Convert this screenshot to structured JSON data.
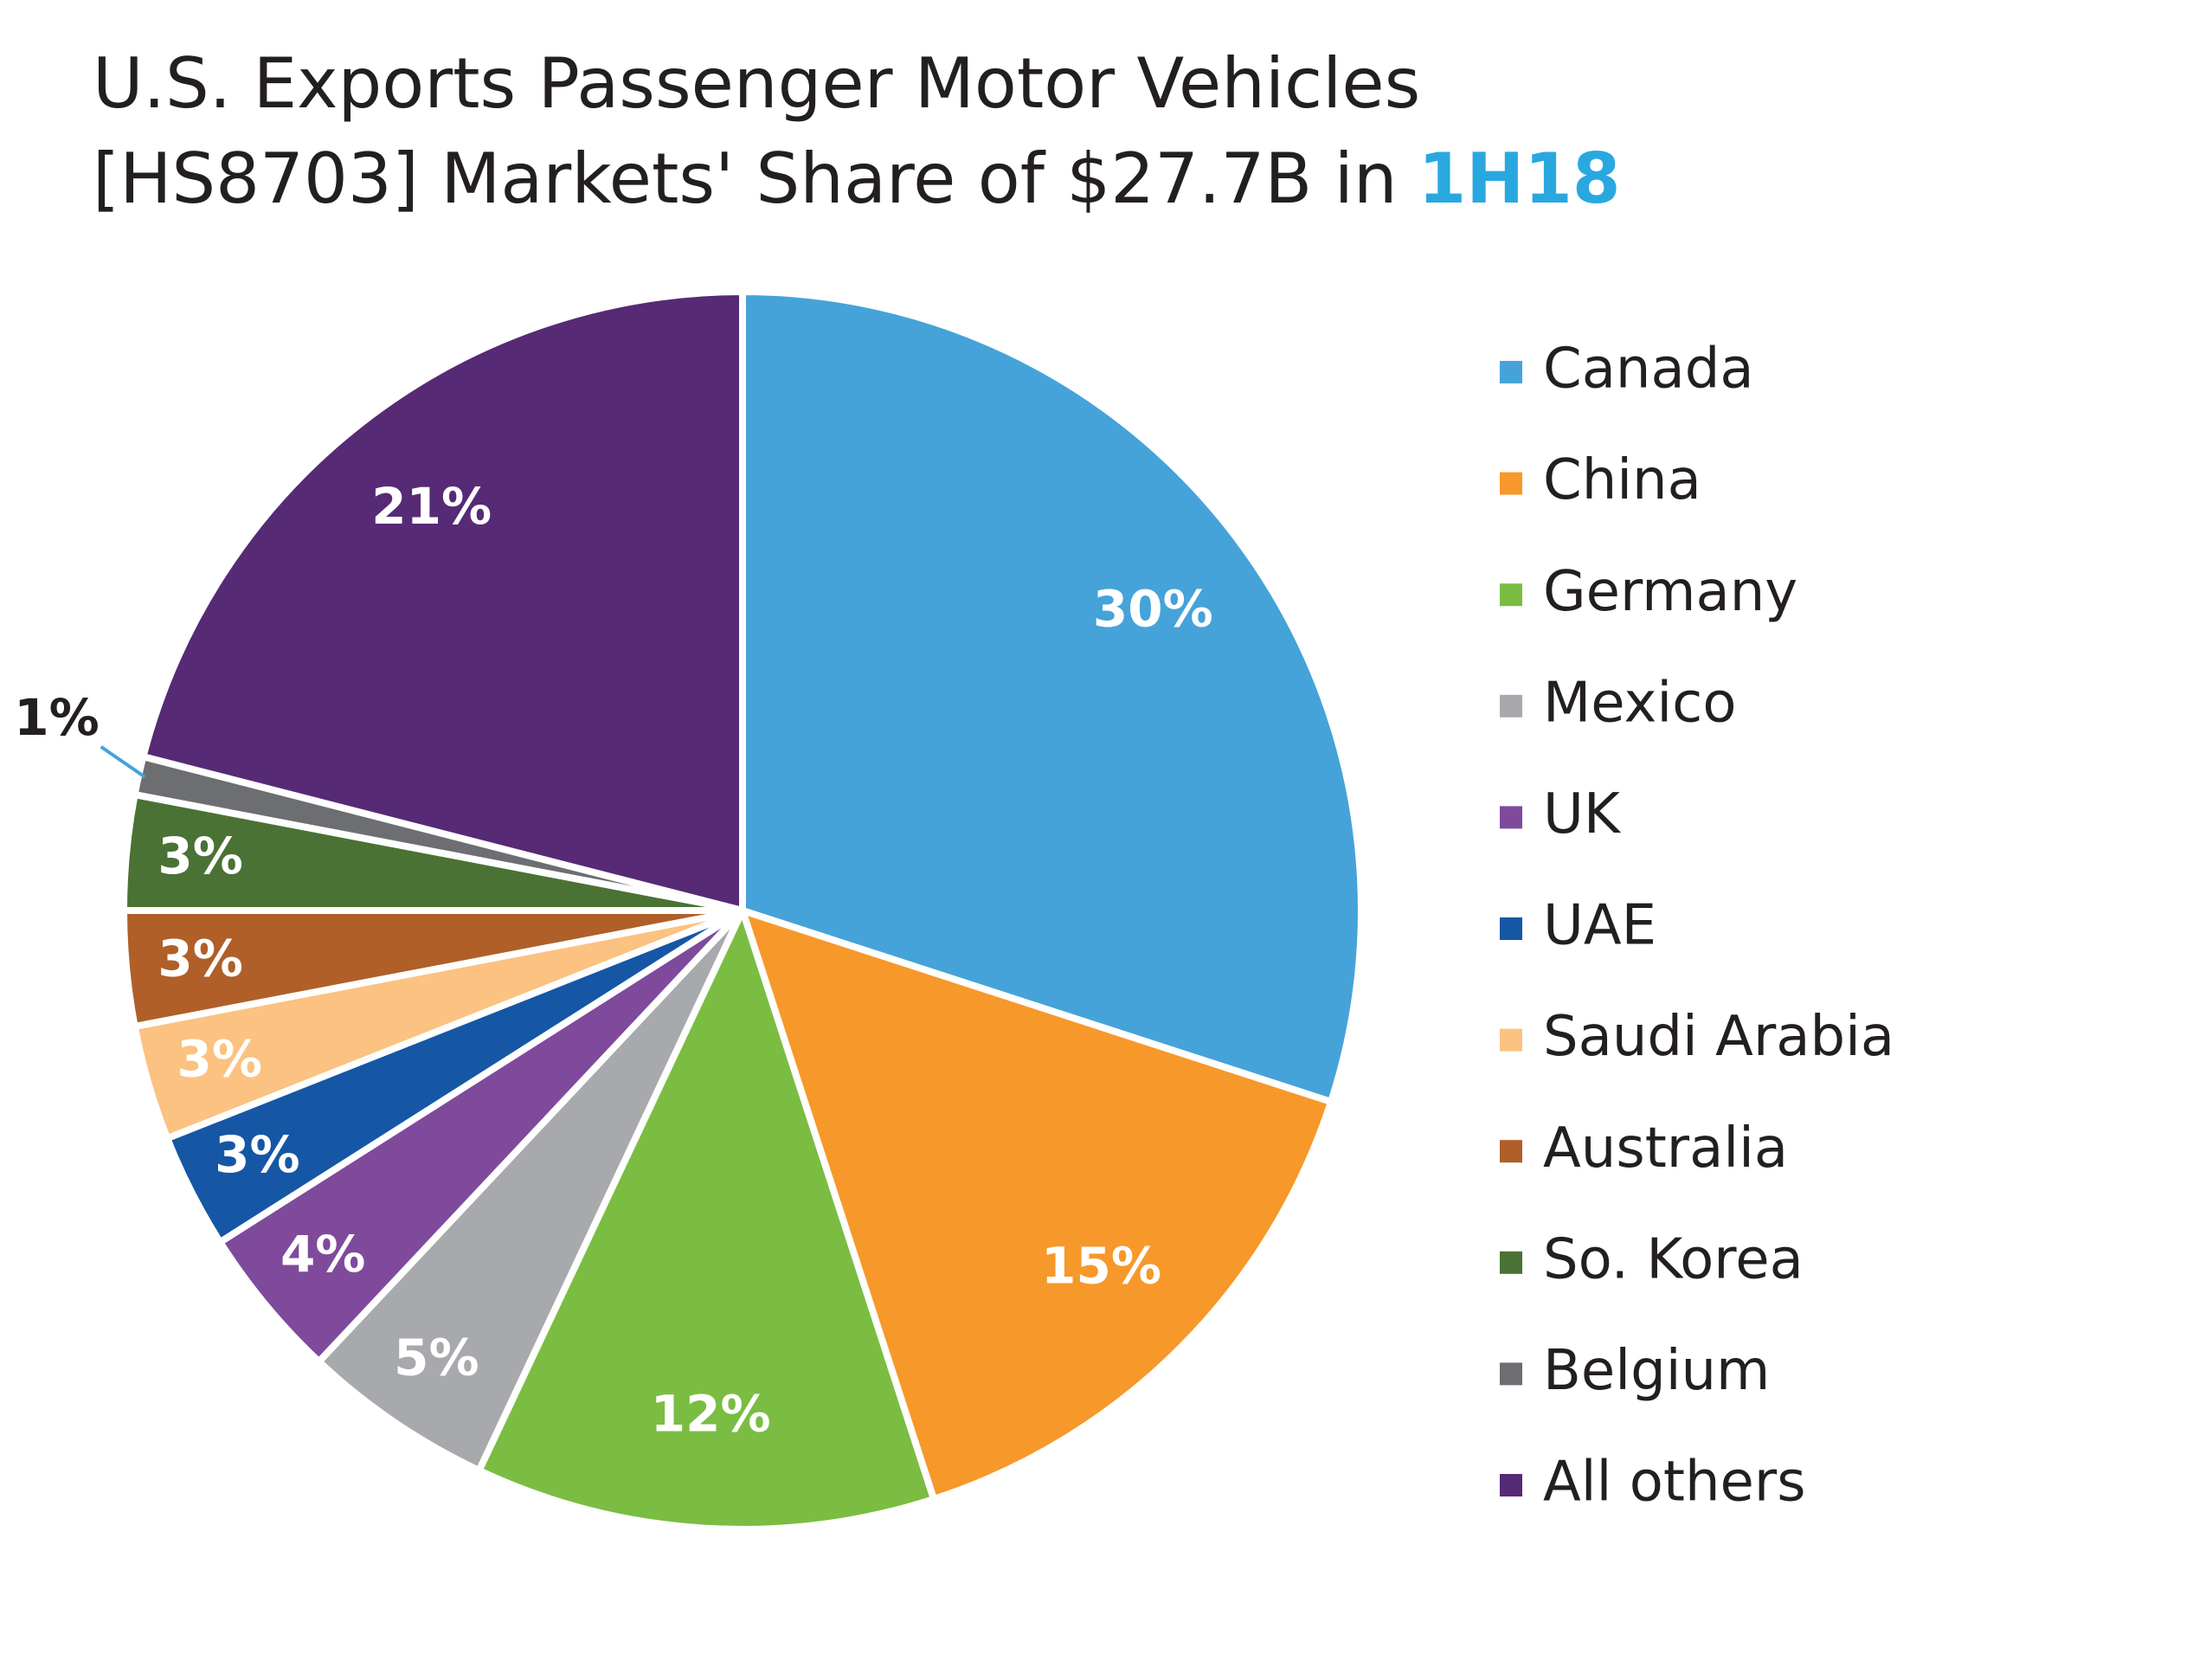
{
  "chart_data": {
    "type": "pie",
    "title_lines": [
      "U.S. Exports Passenger Motor Vehicles",
      "[HS8703] Markets' Share of $27.7B in"
    ],
    "title_highlight": "1H18",
    "title_highlight_color": "#29a8e0",
    "categories": [
      "Canada",
      "China",
      "Germany",
      "Mexico",
      "UK",
      "UAE",
      "Saudi Arabia",
      "Australia",
      "So. Korea",
      "Belgium",
      "All others"
    ],
    "values": [
      30,
      15,
      12,
      5,
      4,
      3,
      3,
      3,
      3,
      1,
      21
    ],
    "value_labels": [
      "30%",
      "15%",
      "12%",
      "5%",
      "4%",
      "3%",
      "3%",
      "3%",
      "3%",
      "1%",
      "21%"
    ],
    "colors": [
      "#45a3d9",
      "#f7982a",
      "#7abd42",
      "#a7a9ac",
      "#7f4a9c",
      "#1557a5",
      "#fbc281",
      "#b05f28",
      "#4a7234",
      "#6d6e71",
      "#562a75"
    ],
    "legend": "right"
  }
}
